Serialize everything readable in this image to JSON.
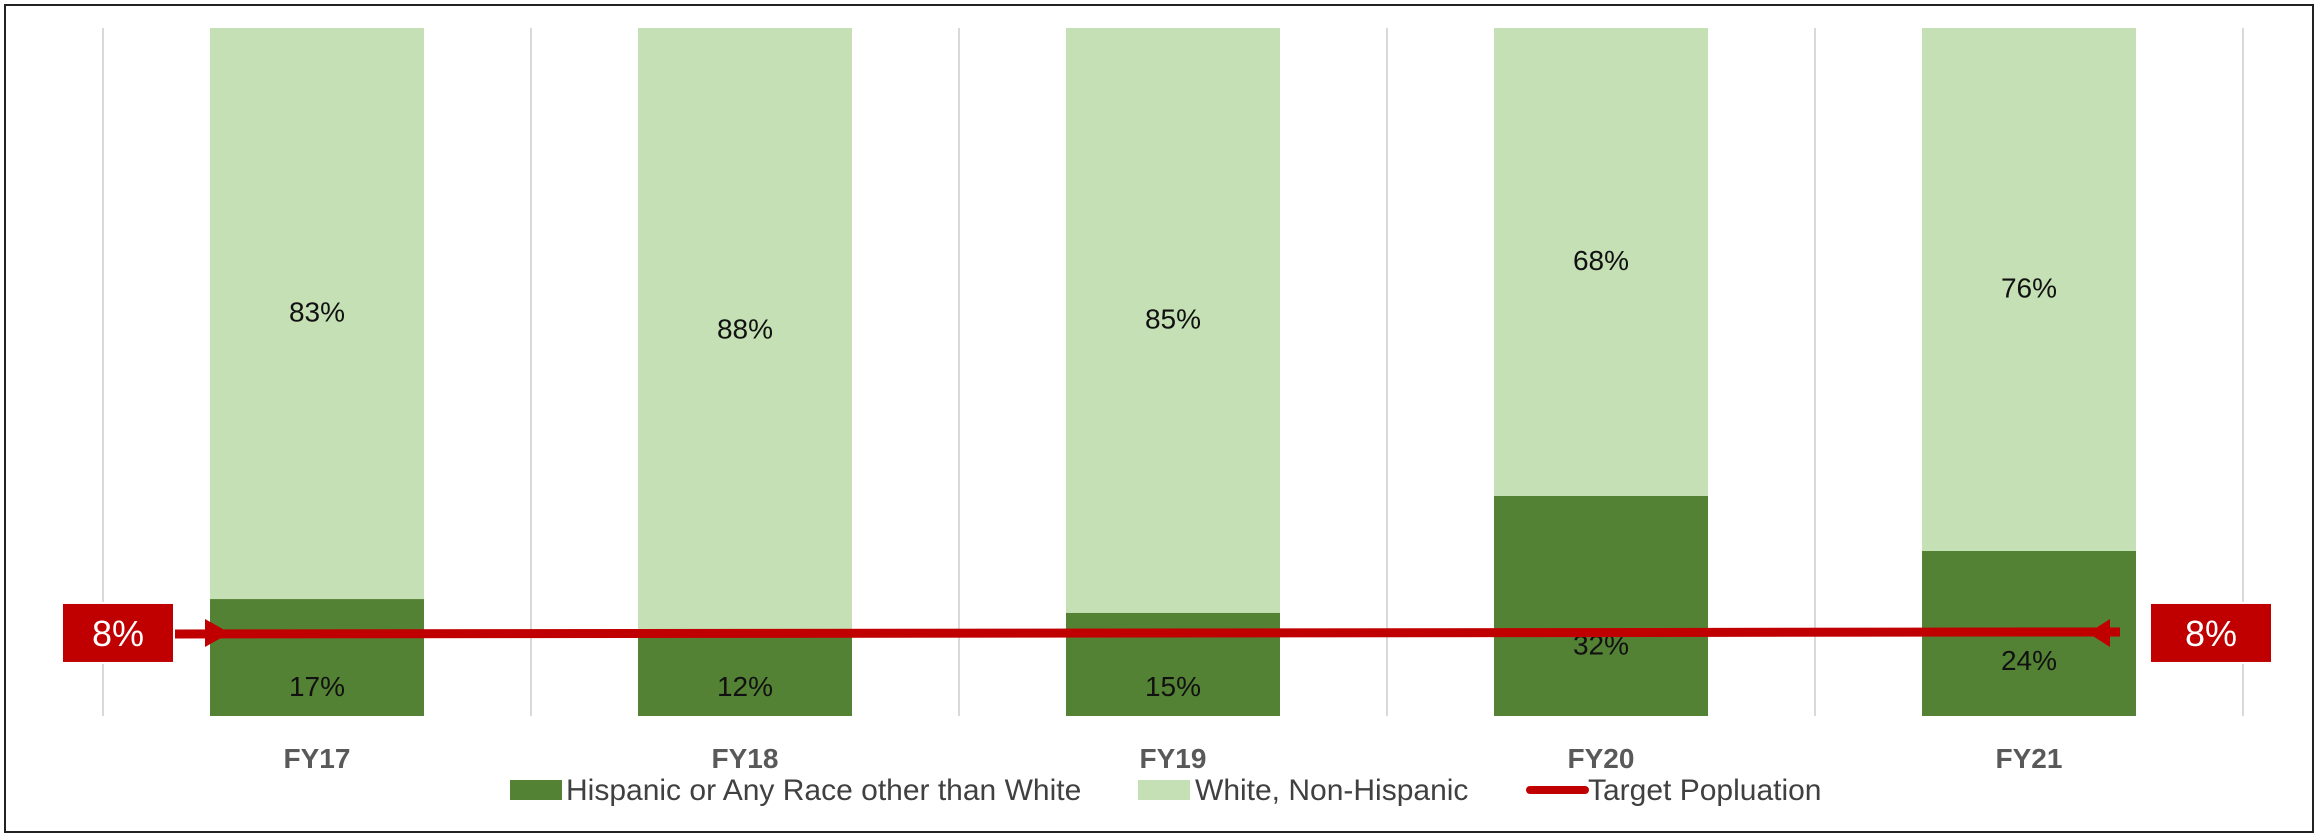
{
  "chart_data": {
    "type": "bar",
    "stacked": true,
    "categories": [
      "FY17",
      "FY18",
      "FY19",
      "FY20",
      "FY21"
    ],
    "series": [
      {
        "name": "Hispanic or Any Race other than White",
        "values": [
          17,
          12,
          15,
          32,
          24
        ],
        "labels": [
          "17%",
          "12%",
          "15%",
          "32%",
          "24%"
        ],
        "color": "#548235"
      },
      {
        "name": "White, Non-Hispanic",
        "values": [
          83,
          88,
          85,
          68,
          76
        ],
        "labels": [
          "83%",
          "88%",
          "85%",
          "68%",
          "76%"
        ],
        "color": "#C5E0B4"
      }
    ],
    "target_line": {
      "name": "Target Popluation",
      "value": 8,
      "label_left": "8%",
      "label_right": "8%",
      "color": "#C00000"
    },
    "ylim": [
      0,
      100
    ],
    "grid": "vertical",
    "legend_position": "bottom"
  }
}
